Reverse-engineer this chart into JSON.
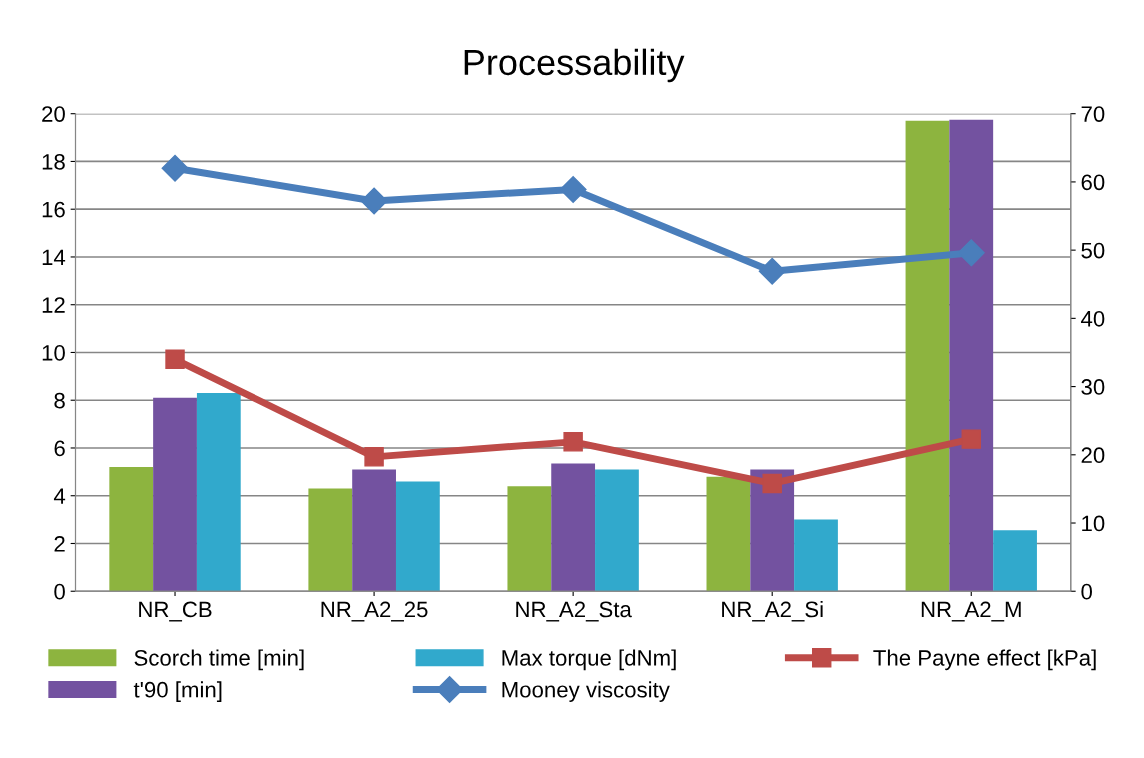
{
  "chart_data": {
    "type": "bar",
    "title": "Processability",
    "categories": [
      "NR_CB",
      "NR_A2_25",
      "NR_A2_Sta",
      "NR_A2_Si",
      "NR_A2_M"
    ],
    "series": [
      {
        "name": "Scorch time [min]",
        "color": "#8db43f",
        "values": [
          5.2,
          4.3,
          4.4,
          4.8,
          19.7
        ]
      },
      {
        "name": "t'90 [min]",
        "color": "#7352a0",
        "values": [
          8.1,
          5.1,
          5.35,
          5.1,
          19.75
        ]
      },
      {
        "name": "Max torque [dNm]",
        "color": "#31a9cc",
        "values": [
          8.3,
          4.6,
          5.1,
          3.0,
          2.55
        ]
      },
      {
        "name": "Mooney viscosity",
        "type": "line",
        "axis": "y2",
        "marker": "diamond",
        "color": "#4a7ebb",
        "values": [
          62,
          57.2,
          58.9,
          46.9,
          49.6
        ]
      },
      {
        "name": "The Payne effect [kPa]",
        "type": "line",
        "axis": "y2",
        "marker": "square",
        "color": "#be4b48",
        "values": [
          34,
          19.7,
          21.9,
          15.8,
          22.3
        ]
      }
    ],
    "ylim": [
      0,
      20
    ],
    "yticks": [
      0,
      2,
      4,
      6,
      8,
      10,
      12,
      14,
      16,
      18,
      20
    ],
    "y2lim": [
      0,
      70
    ],
    "y2ticks": [
      0,
      10,
      20,
      30,
      40,
      50,
      60,
      70
    ],
    "grid": "y",
    "legend": "bottom"
  }
}
